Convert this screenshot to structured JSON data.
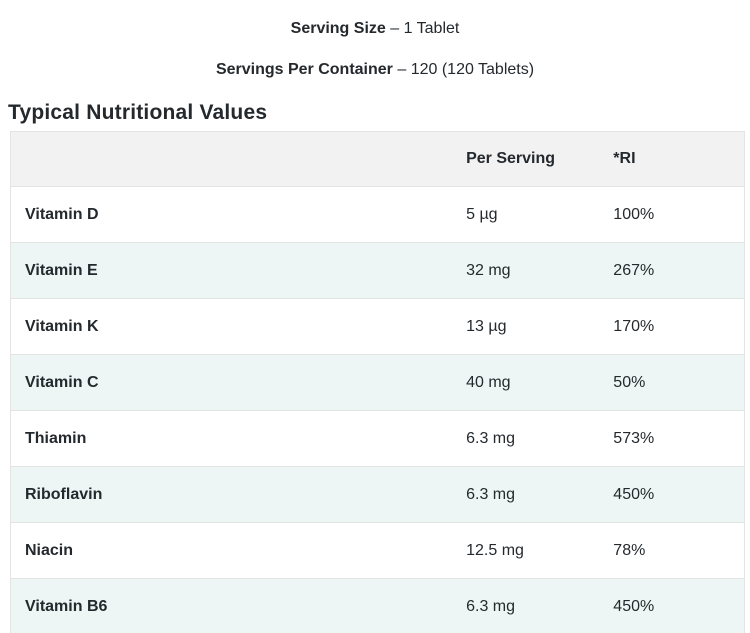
{
  "header": {
    "serving_size": {
      "label": "Serving Size",
      "value": "– 1 Tablet"
    },
    "servings_per_container": {
      "label": "Servings Per Container",
      "value": "– 120 (120 Tablets)"
    }
  },
  "section_title": "Typical Nutritional Values",
  "table": {
    "columns": [
      "",
      "Per Serving",
      "*RI"
    ],
    "rows": [
      {
        "name": "Vitamin D",
        "per_serving": "5 µg",
        "ri": "100%"
      },
      {
        "name": "Vitamin E",
        "per_serving": "32 mg",
        "ri": "267%"
      },
      {
        "name": "Vitamin K",
        "per_serving": "13 µg",
        "ri": "170%"
      },
      {
        "name": "Vitamin C",
        "per_serving": "40 mg",
        "ri": "50%"
      },
      {
        "name": "Thiamin",
        "per_serving": "6.3 mg",
        "ri": "573%"
      },
      {
        "name": "Riboflavin",
        "per_serving": "6.3 mg",
        "ri": "450%"
      },
      {
        "name": "Niacin",
        "per_serving": "12.5 mg",
        "ri": "78%"
      },
      {
        "name": "Vitamin B6",
        "per_serving": "6.3 mg",
        "ri": "450%"
      }
    ]
  },
  "colors": {
    "text": "#24292e",
    "border": "#e4e4e4",
    "header_bg": "#f2f2f2",
    "row_alt": "#edf6f4",
    "row": "#ffffff"
  }
}
